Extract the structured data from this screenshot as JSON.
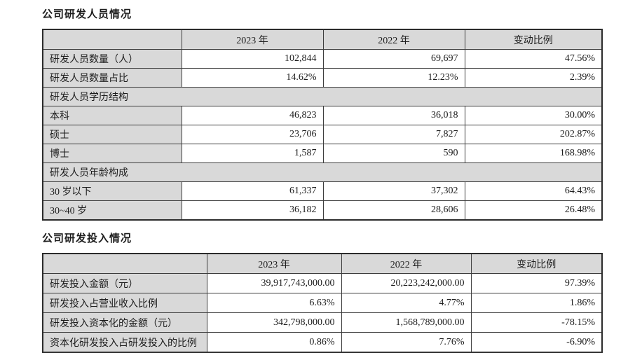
{
  "colors": {
    "header_bg": "#d9d9d9",
    "label_bg": "#d9d9d9",
    "border": "#3d3d3d",
    "text": "#1c1c1c",
    "page_bg": "#ffffff"
  },
  "section1": {
    "title": "公司研发人员情况",
    "table": {
      "headers": [
        "",
        "2023 年",
        "2022 年",
        "变动比例"
      ],
      "rows": [
        {
          "type": "data",
          "label": "研发人员数量（人）",
          "v2023": "102,844",
          "v2022": "69,697",
          "change": "47.56%"
        },
        {
          "type": "data",
          "label": "研发人员数量占比",
          "v2023": "14.62%",
          "v2022": "12.23%",
          "change": "2.39%"
        },
        {
          "type": "section",
          "label": "研发人员学历结构"
        },
        {
          "type": "data",
          "label": "本科",
          "v2023": "46,823",
          "v2022": "36,018",
          "change": "30.00%"
        },
        {
          "type": "data",
          "label": "硕士",
          "v2023": "23,706",
          "v2022": "7,827",
          "change": "202.87%"
        },
        {
          "type": "data",
          "label": "博士",
          "v2023": "1,587",
          "v2022": "590",
          "change": "168.98%"
        },
        {
          "type": "section",
          "label": "研发人员年龄构成"
        },
        {
          "type": "data",
          "label": "30 岁以下",
          "v2023": "61,337",
          "v2022": "37,302",
          "change": "64.43%"
        },
        {
          "type": "data",
          "label": "30~40 岁",
          "v2023": "36,182",
          "v2022": "28,606",
          "change": "26.48%"
        }
      ]
    }
  },
  "section2": {
    "title": "公司研发投入情况",
    "table": {
      "headers": [
        "",
        "2023 年",
        "2022 年",
        "变动比例"
      ],
      "rows": [
        {
          "type": "data",
          "label": "研发投入金额（元）",
          "v2023": "39,917,743,000.00",
          "v2022": "20,223,242,000.00",
          "change": "97.39%"
        },
        {
          "type": "data",
          "label": "研发投入占营业收入比例",
          "v2023": "6.63%",
          "v2022": "4.77%",
          "change": "1.86%"
        },
        {
          "type": "data",
          "label": "研发投入资本化的金额（元）",
          "v2023": "342,798,000.00",
          "v2022": "1,568,789,000.00",
          "change": "-78.15%"
        },
        {
          "type": "data",
          "label": "资本化研发投入占研发投入的比例",
          "v2023": "0.86%",
          "v2022": "7.76%",
          "change": "-6.90%"
        }
      ]
    }
  }
}
